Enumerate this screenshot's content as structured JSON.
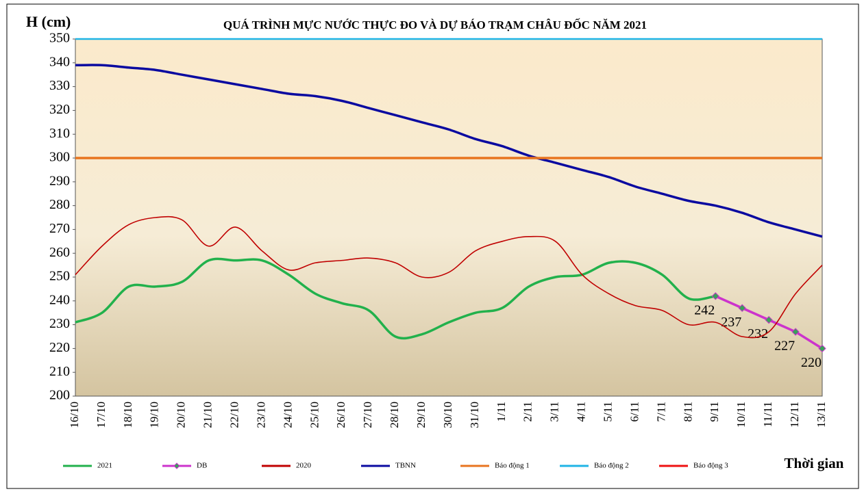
{
  "chart_data": {
    "type": "line",
    "title": "QUÁ TRÌNH MỰC NƯỚC THỰC ĐO VÀ DỰ BÁO TRẠM CHÂU ĐỐC NĂM  2021",
    "y_label": "H (cm)",
    "x_label": "Thời gian",
    "categories": [
      "16/10",
      "17/10",
      "18/10",
      "19/10",
      "20/10",
      "21/10",
      "22/10",
      "23/10",
      "24/10",
      "25/10",
      "26/10",
      "27/10",
      "28/10",
      "29/10",
      "30/10",
      "31/10",
      "1/11",
      "2/11",
      "3/11",
      "4/11",
      "5/11",
      "6/11",
      "7/11",
      "8/11",
      "9/11",
      "10/11",
      "11/11",
      "12/11",
      "13/11"
    ],
    "ylim": [
      200,
      350
    ],
    "yticks": [
      200,
      210,
      220,
      230,
      240,
      250,
      260,
      270,
      280,
      290,
      300,
      310,
      320,
      330,
      340,
      350
    ],
    "series": [
      {
        "name": "2021",
        "color": "#22b14c",
        "values": [
          231,
          235,
          246,
          246,
          248,
          257,
          257,
          257,
          251,
          243,
          239,
          236,
          225,
          226,
          231,
          235,
          237,
          246,
          250,
          251,
          256,
          256,
          251,
          241,
          242,
          null,
          null,
          null,
          null
        ]
      },
      {
        "name": "DB",
        "color": "#cc33cc",
        "marker": "diamond",
        "data_labels": true,
        "values": [
          null,
          null,
          null,
          null,
          null,
          null,
          null,
          null,
          null,
          null,
          null,
          null,
          null,
          null,
          null,
          null,
          null,
          null,
          null,
          null,
          null,
          null,
          null,
          null,
          242,
          237,
          232,
          227,
          220
        ]
      },
      {
        "name": "2020",
        "color": "#c00000",
        "values": [
          251,
          263,
          272,
          275,
          274,
          263,
          271,
          261,
          253,
          256,
          257,
          258,
          256,
          250,
          252,
          261,
          265,
          267,
          265,
          251,
          243,
          238,
          236,
          230,
          231,
          225,
          227,
          243,
          255
        ]
      },
      {
        "name": "TBNN",
        "color": "#0a0aa0",
        "values": [
          339,
          339,
          338,
          337,
          335,
          333,
          331,
          329,
          327,
          326,
          324,
          321,
          318,
          315,
          312,
          308,
          305,
          301,
          298,
          295,
          292,
          288,
          285,
          282,
          280,
          277,
          273,
          270,
          267
        ]
      },
      {
        "name": "Báo động 1",
        "color": "#e8741f",
        "values": [
          300,
          300,
          300,
          300,
          300,
          300,
          300,
          300,
          300,
          300,
          300,
          300,
          300,
          300,
          300,
          300,
          300,
          300,
          300,
          300,
          300,
          300,
          300,
          300,
          300,
          300,
          300,
          300,
          300
        ]
      },
      {
        "name": "Báo động 2",
        "color": "#1fb4e6",
        "values": [
          350,
          350,
          350,
          350,
          350,
          350,
          350,
          350,
          350,
          350,
          350,
          350,
          350,
          350,
          350,
          350,
          350,
          350,
          350,
          350,
          350,
          350,
          350,
          350,
          350,
          350,
          350,
          350,
          350
        ]
      },
      {
        "name": "Báo động 3",
        "color": "#ee1111",
        "values": [
          null,
          null,
          null,
          null,
          null,
          null,
          null,
          null,
          null,
          null,
          null,
          null,
          null,
          null,
          null,
          null,
          null,
          null,
          null,
          null,
          null,
          null,
          null,
          null,
          null,
          null,
          null,
          null,
          null
        ]
      }
    ]
  }
}
